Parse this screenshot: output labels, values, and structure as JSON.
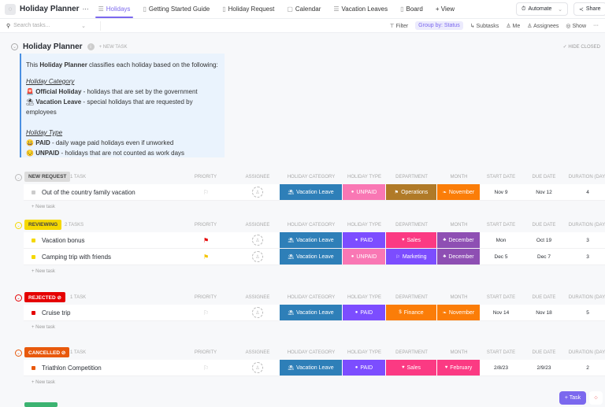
{
  "app": {
    "title": "Holiday Planner",
    "more": "···"
  },
  "tabs": [
    {
      "label": "Holidays",
      "active": true,
      "icon": "list-icon"
    },
    {
      "label": "Getting Started Guide",
      "icon": "doc-icon"
    },
    {
      "label": "Holiday Request",
      "icon": "form-icon"
    },
    {
      "label": "Calendar",
      "icon": "calendar-icon"
    },
    {
      "label": "Vacation Leaves",
      "icon": "list-icon"
    },
    {
      "label": "Board",
      "icon": "board-icon"
    },
    {
      "label": "+ View",
      "icon": ""
    }
  ],
  "header_buttons": {
    "automate": "Automate",
    "share": "Share"
  },
  "toolbar": {
    "search_placeholder": "Search tasks...",
    "filter": "Filter",
    "group_by": "Group by: Status",
    "subtasks": "Subtasks",
    "me": "Me",
    "assignees": "Assignees",
    "show": "Show",
    "more": "···"
  },
  "list": {
    "title": "Holiday Planner",
    "new_task": "+ NEW TASK",
    "hide_closed": "✓ HIDE CLOSED"
  },
  "description": {
    "intro_pre": "This ",
    "intro_bold": "Holiday Planner",
    "intro_post": " classifies each holiday based on the following:",
    "category_heading": "Holiday Category",
    "official_label": "Official Holiday",
    "official_text": " - holidays that are set by the government",
    "vacation_label": "Vacation Leave",
    "vacation_text": " - special holidays that are requested by employees",
    "type_heading": "Holiday Type",
    "paid_label": "PAID",
    "paid_text": " - daily wage paid holidays even if unworked",
    "unpaid_label": "UNPAID",
    "unpaid_text": " - holidays that are not counted as work days"
  },
  "columns": [
    "PRIORITY",
    "ASSIGNEE",
    "HOLIDAY CATEGORY",
    "HOLIDAY TYPE",
    "DEPARTMENT",
    "MONTH",
    "START DATE",
    "DUE DATE",
    "DURATION (DAYS)"
  ],
  "colors": {
    "accent": "#7b68ee",
    "vacation_leave": "#2e7fb8",
    "paid": "#7c4dff",
    "unpaid": "#f977b4",
    "operations": "#b07a28",
    "sales": "#fb3a83",
    "marketing": "#7c4dff",
    "finance": "#fb7d08",
    "november": "#fb7d08",
    "december": "#8e4fb3",
    "february": "#fb3a83"
  },
  "new_task_label": "+ New task",
  "groups": [
    {
      "status": "NEW REQUEST",
      "count": "1 TASK",
      "bg": "#dcdcdc",
      "fg": "#444",
      "tasks": [
        {
          "name": "Out of the country family vacation",
          "priority": "none",
          "category": "Vacation Leave",
          "type": "UNPAID",
          "department": "Operations",
          "month": "November",
          "start": "Nov 9",
          "due": "Nov 12",
          "duration": "4"
        }
      ]
    },
    {
      "status": "REVIEWING",
      "count": "2 TASKS",
      "bg": "#f5d800",
      "fg": "#444",
      "tasks": [
        {
          "name": "Vacation bonus",
          "priority": "urgent",
          "category": "Vacation Leave",
          "type": "PAID",
          "department": "Sales",
          "month": "December",
          "start": "Mon",
          "due": "Oct 19",
          "duration": "3"
        },
        {
          "name": "Camping trip with friends",
          "priority": "high",
          "category": "Vacation Leave",
          "type": "UNPAID",
          "department": "Marketing",
          "month": "December",
          "start": "Dec 5",
          "due": "Dec 7",
          "duration": "3"
        }
      ]
    },
    {
      "status": "REJECTED ⊘",
      "count": "1 TASK",
      "bg": "#e50000",
      "fg": "#fff",
      "tasks": [
        {
          "name": "Cruise trip",
          "priority": "none",
          "category": "Vacation Leave",
          "type": "PAID",
          "department": "Finance",
          "month": "November",
          "start": "Nov 14",
          "due": "Nov 18",
          "duration": "5"
        }
      ]
    },
    {
      "status": "CANCELLED ⊘",
      "count": "1 TASK",
      "bg": "#e8590c",
      "fg": "#fff",
      "tasks": [
        {
          "name": "Triathlon Competition",
          "priority": "none",
          "category": "Vacation Leave",
          "type": "PAID",
          "department": "Sales",
          "month": "February",
          "start": "2/8/23",
          "due": "2/9/23",
          "duration": "2"
        }
      ]
    }
  ],
  "fab": {
    "task": "+ Task"
  }
}
